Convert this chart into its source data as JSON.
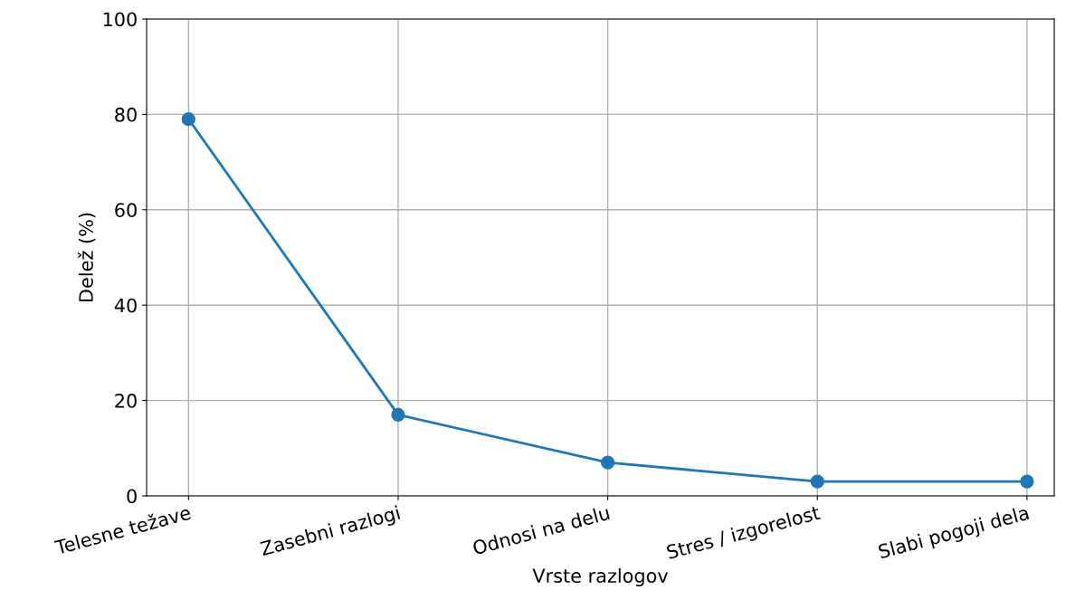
{
  "chart_data": {
    "type": "line",
    "xlabel": "Vrste razlogov",
    "ylabel": "Delež (%)",
    "categories": [
      "Telesne težave",
      "Zasebni razlogi",
      "Odnosi na delu",
      "Stres / izgorelost",
      "Slabi pogoji dela"
    ],
    "series": [
      {
        "color": "#1f77b4",
        "values": [
          79,
          17,
          7,
          3,
          3
        ]
      }
    ],
    "ylim": [
      0,
      100
    ],
    "yticks": [
      0,
      20,
      40,
      60,
      80,
      100
    ],
    "grid": true,
    "marker": "circle",
    "line_style": "solid",
    "legend": false
  }
}
